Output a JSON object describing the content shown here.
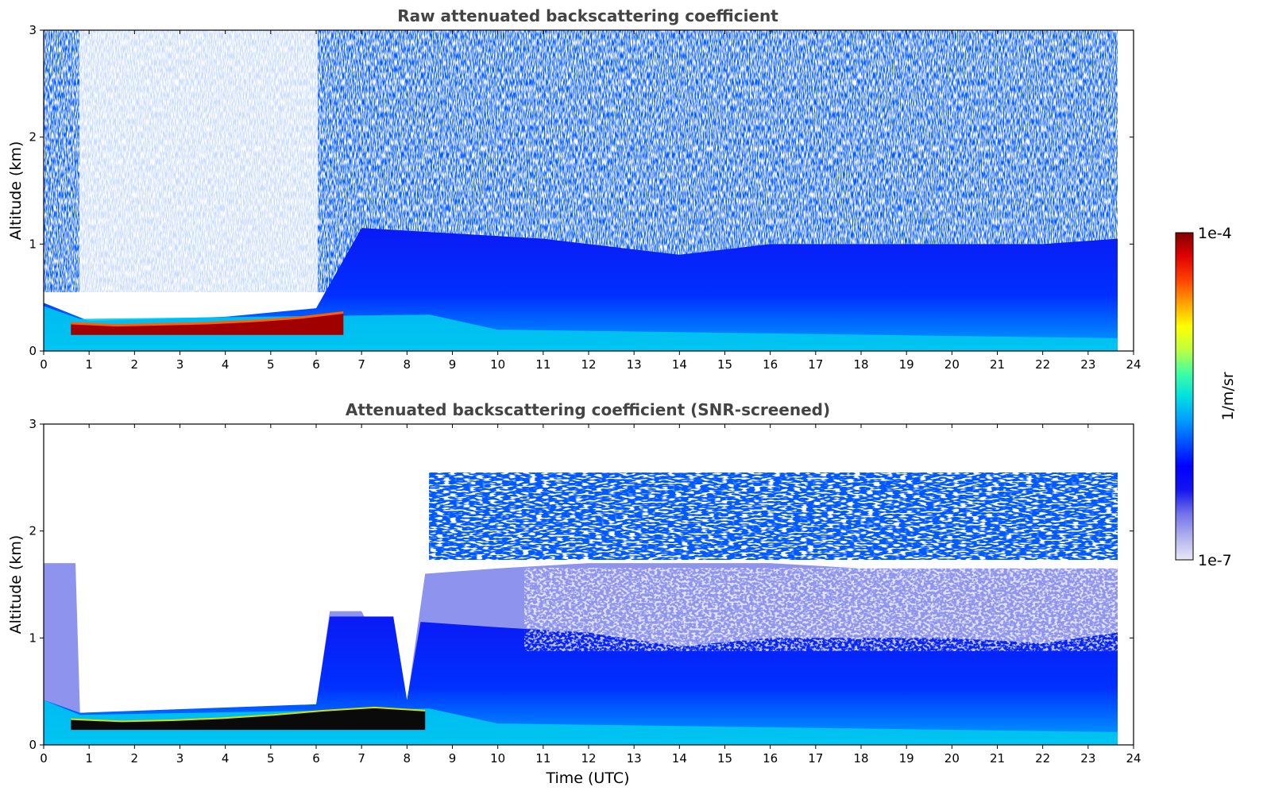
{
  "chart_data": [
    {
      "type": "heatmap",
      "title": "Raw attenuated backscattering coefficient",
      "xlabel": "",
      "ylabel": "Altitude (km)",
      "xlim": [
        0,
        24
      ],
      "ylim": [
        0,
        3
      ],
      "xticks": [
        "0",
        "1",
        "2",
        "3",
        "4",
        "5",
        "6",
        "7",
        "8",
        "9",
        "10",
        "11",
        "12",
        "13",
        "14",
        "15",
        "16",
        "17",
        "18",
        "19",
        "20",
        "21",
        "22",
        "23",
        "24"
      ],
      "yticks": [
        "0",
        "1",
        "2",
        "3"
      ],
      "data_end_time": 23.65,
      "features": [
        {
          "label": "dense layer (~1e-4)",
          "x_start": 0.6,
          "x_end": 6.6,
          "altitude_top": [
            0.26,
            0.24,
            0.25,
            0.26,
            0.28,
            0.31,
            0.36
          ],
          "altitude_bottom": 0.15
        },
        {
          "label": "boundary layer top",
          "x": [
            0,
            1,
            4,
            6,
            7,
            9,
            11,
            12,
            13,
            14,
            15,
            16,
            18,
            20,
            22,
            23.65
          ],
          "altitude": [
            0.45,
            0.28,
            0.32,
            0.4,
            1.15,
            1.1,
            1.05,
            1.0,
            0.95,
            0.9,
            0.95,
            1.0,
            1.0,
            1.0,
            1.0,
            1.05
          ]
        }
      ],
      "grid": false
    },
    {
      "type": "heatmap",
      "title": "Attenuated backscattering coefficient (SNR-screened)",
      "xlabel": "Time (UTC)",
      "ylabel": "Altitude (km)",
      "xlim": [
        0,
        24
      ],
      "ylim": [
        0,
        3
      ],
      "xticks": [
        "0",
        "1",
        "2",
        "3",
        "4",
        "5",
        "6",
        "7",
        "8",
        "9",
        "10",
        "11",
        "12",
        "13",
        "14",
        "15",
        "16",
        "17",
        "18",
        "19",
        "20",
        "21",
        "22",
        "23",
        "24"
      ],
      "yticks": [
        "0",
        "1",
        "2",
        "3"
      ],
      "data_end_time": 23.65,
      "features": [
        {
          "label": "saturated layer",
          "x_start": 0.6,
          "x_end": 8.4,
          "altitude_top": [
            0.24,
            0.22,
            0.23,
            0.25,
            0.28,
            0.32,
            0.35,
            0.32
          ],
          "altitude_bottom": 0.14
        },
        {
          "label": "screened aerosol top",
          "x": [
            0,
            0.7,
            0.8,
            6,
            6.3,
            7,
            8,
            8.4,
            10,
            12,
            14,
            16,
            18,
            20,
            22,
            23.65
          ],
          "altitude": [
            1.7,
            1.7,
            0.3,
            0.35,
            1.25,
            1.25,
            0.4,
            1.6,
            1.65,
            1.7,
            1.7,
            1.7,
            1.65,
            1.65,
            1.65,
            1.65
          ]
        }
      ],
      "grid": false
    }
  ],
  "colorbar": {
    "label": "1/m/sr",
    "min_label": "1e-7",
    "max_label": "1e-4",
    "colormap": [
      "#e8e8f5",
      "#b0b0ee",
      "#7070ea",
      "#1414f0",
      "#0000ff",
      "#0050ff",
      "#00a0ff",
      "#00e0e0",
      "#40ffa0",
      "#c0ff40",
      "#ffff00",
      "#ffa000",
      "#ff4000",
      "#e00000",
      "#800000"
    ]
  }
}
